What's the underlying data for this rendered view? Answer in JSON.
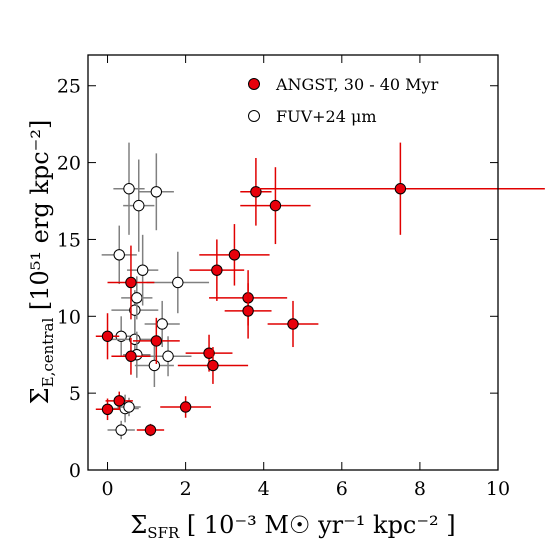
{
  "chart_data": {
    "type": "scatter",
    "title": "",
    "xlabel": {
      "main": "Σ",
      "sub": "SFR",
      "rest": " [ 10⁻³ M☉ yr⁻¹ kpc⁻² ]"
    },
    "ylabel": {
      "main": "Σ",
      "sub": "E,central",
      "rest": " [10⁵¹ erg kpc⁻²]"
    },
    "xlim": [
      -0.5,
      10
    ],
    "ylim": [
      0,
      27
    ],
    "xticks": [
      0,
      2,
      4,
      6,
      8,
      10
    ],
    "yticks": [
      0,
      5,
      10,
      15,
      20,
      25
    ],
    "grid": false,
    "legend_position": "top-right",
    "colors": {
      "red_marker": "#e8000b",
      "red_bar": "#e00000",
      "open_bar": "#808080"
    },
    "series": [
      {
        "name": "ANGST, 30 - 40 Myr",
        "marker": "filled-red",
        "points": [
          {
            "x": 0.0,
            "y": 3.95,
            "xerr": 0.3,
            "yerr": 0.7
          },
          {
            "x": 0.3,
            "y": 4.5,
            "xerr": 0.35,
            "yerr": 0.6
          },
          {
            "x": 0.0,
            "y": 8.7,
            "xerr": 0.3,
            "yerr": 1.5
          },
          {
            "x": 0.6,
            "y": 7.4,
            "xerr": 0.5,
            "yerr": 1.2
          },
          {
            "x": 0.6,
            "y": 12.2,
            "xerr": 0.6,
            "yerr": 2.4
          },
          {
            "x": 1.1,
            "y": 2.6,
            "xerr": 0.35,
            "yerr": 0.4
          },
          {
            "x": 1.25,
            "y": 8.4,
            "xerr": 0.6,
            "yerr": 1.5
          },
          {
            "x": 2.0,
            "y": 4.1,
            "xerr": 0.65,
            "yerr": 0.7
          },
          {
            "x": 2.6,
            "y": 7.6,
            "xerr": 0.6,
            "yerr": 1.2
          },
          {
            "x": 2.7,
            "y": 6.8,
            "xerr": 0.9,
            "yerr": 1.2
          },
          {
            "x": 2.8,
            "y": 13.0,
            "xerr": 0.7,
            "yerr": 2.0
          },
          {
            "x": 3.25,
            "y": 14.0,
            "xerr": 0.9,
            "yerr": 2.0
          },
          {
            "x": 3.6,
            "y": 11.2,
            "xerr": 1.0,
            "yerr": 1.8
          },
          {
            "x": 3.6,
            "y": 10.35,
            "xerr": 0.6,
            "yerr": 1.8
          },
          {
            "x": 3.8,
            "y": 18.1,
            "xerr": 0.4,
            "yerr": 2.2
          },
          {
            "x": 4.3,
            "y": 17.2,
            "xerr": 0.9,
            "yerr": 2.5
          },
          {
            "x": 4.75,
            "y": 9.5,
            "xerr": 0.65,
            "yerr": 1.5
          },
          {
            "x": 7.5,
            "y": 18.3,
            "xerr": 3.7,
            "yerr": 3.0
          }
        ]
      },
      {
        "name": "FUV+24 μm",
        "marker": "open-circle",
        "points": [
          {
            "x": 0.3,
            "y": 14.0,
            "xerr": 0.45,
            "yerr": 1.9
          },
          {
            "x": 0.35,
            "y": 8.7,
            "xerr": 0.45,
            "yerr": 1.3
          },
          {
            "x": 0.35,
            "y": 2.6,
            "xerr": 0.35,
            "yerr": 0.6
          },
          {
            "x": 0.45,
            "y": 4.0,
            "xerr": 0.35,
            "yerr": 0.9
          },
          {
            "x": 0.55,
            "y": 18.3,
            "xerr": 0.4,
            "yerr": 3.0
          },
          {
            "x": 0.55,
            "y": 4.1,
            "xerr": 0.3,
            "yerr": 0.6
          },
          {
            "x": 0.7,
            "y": 10.4,
            "xerr": 0.6,
            "yerr": 1.3
          },
          {
            "x": 0.7,
            "y": 8.5,
            "xerr": 0.6,
            "yerr": 1.3
          },
          {
            "x": 0.75,
            "y": 11.2,
            "xerr": 0.4,
            "yerr": 1.4
          },
          {
            "x": 0.75,
            "y": 7.5,
            "xerr": 0.35,
            "yerr": 1.5
          },
          {
            "x": 0.8,
            "y": 17.2,
            "xerr": 0.4,
            "yerr": 3.0
          },
          {
            "x": 0.9,
            "y": 13.0,
            "xerr": 0.4,
            "yerr": 2.3
          },
          {
            "x": 1.2,
            "y": 6.8,
            "xerr": 0.5,
            "yerr": 1.4
          },
          {
            "x": 1.25,
            "y": 18.1,
            "xerr": 0.45,
            "yerr": 2.5
          },
          {
            "x": 1.4,
            "y": 9.5,
            "xerr": 0.45,
            "yerr": 1.5
          },
          {
            "x": 1.55,
            "y": 7.4,
            "xerr": 0.6,
            "yerr": 1.3
          },
          {
            "x": 1.8,
            "y": 12.2,
            "xerr": 0.8,
            "yerr": 2.0
          }
        ]
      }
    ]
  }
}
